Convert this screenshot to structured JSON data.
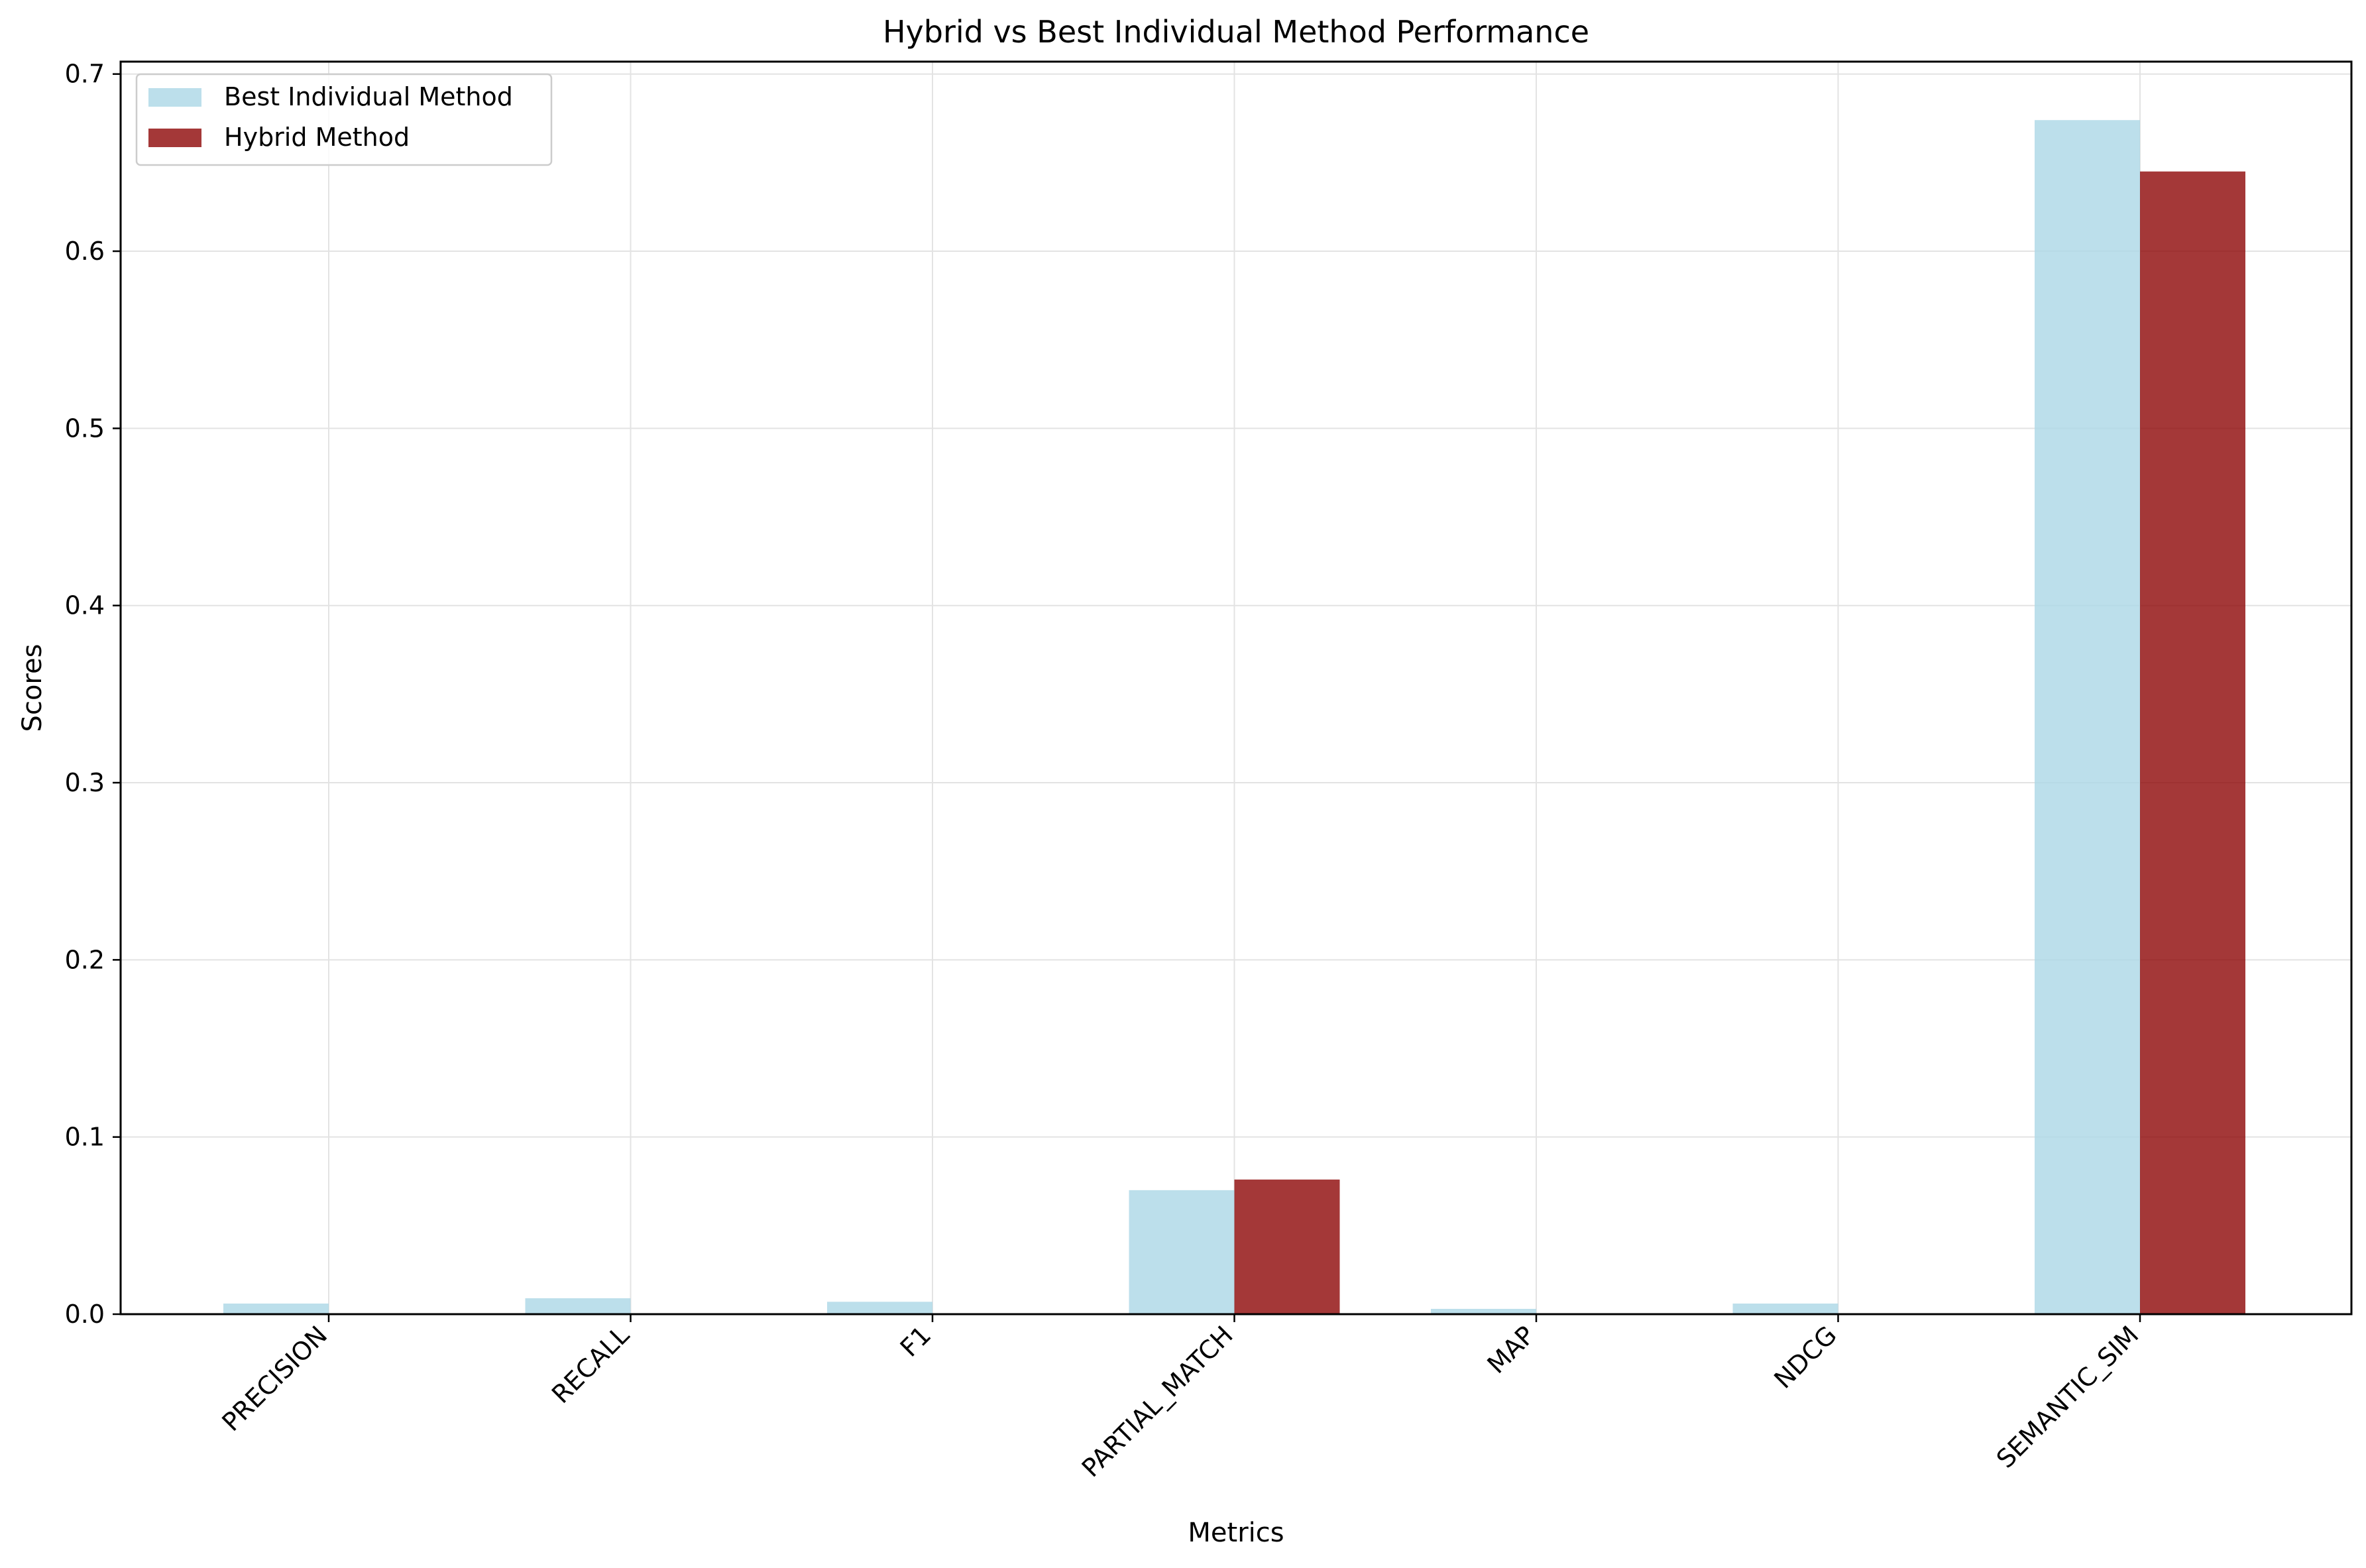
{
  "chart_data": {
    "type": "bar",
    "title": "Hybrid vs Best Individual Method Performance",
    "xlabel": "Metrics",
    "ylabel": "Scores",
    "categories": [
      "PRECISION",
      "RECALL",
      "F1",
      "PARTIAL_MATCH",
      "MAP",
      "NDCG",
      "SEMANTIC_SIM"
    ],
    "series": [
      {
        "name": "Best Individual Method",
        "color": "#add8e6",
        "values": [
          0.006,
          0.009,
          0.007,
          0.07,
          0.003,
          0.006,
          0.674
        ]
      },
      {
        "name": "Hybrid Method",
        "color": "#8b0000",
        "values": [
          0.0,
          0.0,
          0.0,
          0.076,
          0.0,
          0.0,
          0.645
        ]
      }
    ],
    "ylim": [
      0,
      0.707
    ],
    "yticks": [
      "0.0",
      "0.1",
      "0.2",
      "0.3",
      "0.4",
      "0.5",
      "0.6",
      "0.7"
    ],
    "grid": true,
    "legend": "top-left",
    "xtick_rotation": 45
  }
}
